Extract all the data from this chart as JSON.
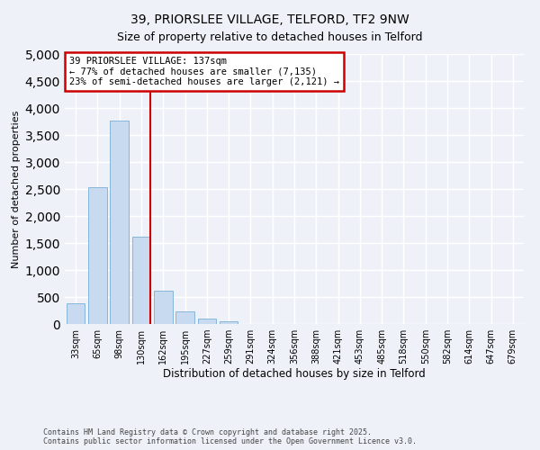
{
  "title": "39, PRIORSLEE VILLAGE, TELFORD, TF2 9NW",
  "subtitle": "Size of property relative to detached houses in Telford",
  "xlabel": "Distribution of detached houses by size in Telford",
  "ylabel": "Number of detached properties",
  "bar_color": "#c8daf0",
  "bar_edge_color": "#7aafd4",
  "categories": [
    "33sqm",
    "65sqm",
    "98sqm",
    "130sqm",
    "162sqm",
    "195sqm",
    "227sqm",
    "259sqm",
    "291sqm",
    "324sqm",
    "356sqm",
    "388sqm",
    "421sqm",
    "453sqm",
    "485sqm",
    "518sqm",
    "550sqm",
    "582sqm",
    "614sqm",
    "647sqm",
    "679sqm"
  ],
  "values": [
    380,
    2540,
    3760,
    1620,
    610,
    240,
    105,
    45,
    0,
    0,
    0,
    0,
    0,
    0,
    0,
    0,
    0,
    0,
    0,
    0,
    0
  ],
  "ylim": [
    0,
    5000
  ],
  "yticks": [
    0,
    500,
    1000,
    1500,
    2000,
    2500,
    3000,
    3500,
    4000,
    4500,
    5000
  ],
  "vline_color": "#cc0000",
  "vline_x_index": 3.4,
  "annotation_line1": "39 PRIORSLEE VILLAGE: 137sqm",
  "annotation_line2": "← 77% of detached houses are smaller (7,135)",
  "annotation_line3": "23% of semi-detached houses are larger (2,121) →",
  "annotation_box_color": "#ffffff",
  "annotation_box_edge_color": "#cc0000",
  "footer1": "Contains HM Land Registry data © Crown copyright and database right 2025.",
  "footer2": "Contains public sector information licensed under the Open Government Licence v3.0.",
  "background_color": "#eef2f8",
  "plot_bg_color": "#eef2f8",
  "grid_color": "#ffffff"
}
